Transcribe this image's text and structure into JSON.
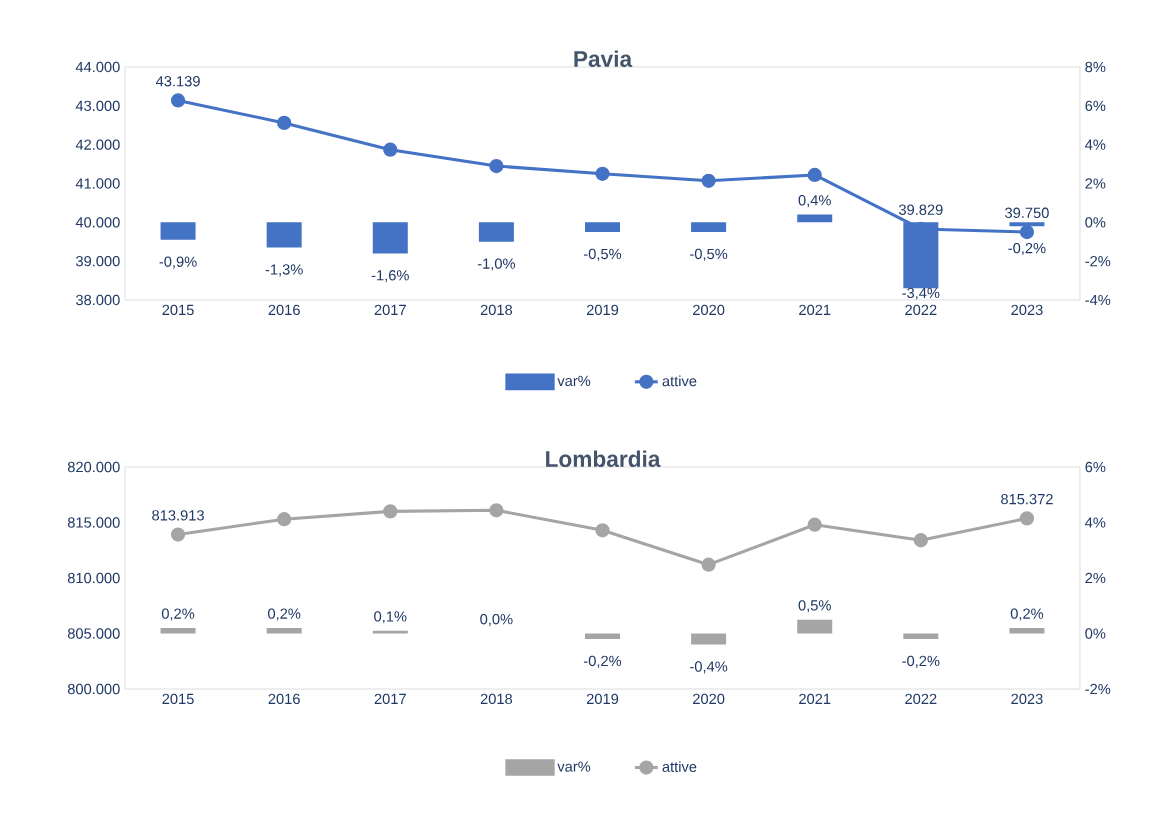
{
  "chart_data": [
    {
      "type": "bar",
      "title": "Pavia",
      "categories": [
        "2015",
        "2016",
        "2017",
        "2018",
        "2019",
        "2020",
        "2021",
        "2022",
        "2023"
      ],
      "series": [
        {
          "name": "var%",
          "axis": "y2",
          "color": "#4472c4",
          "values": [
            -0.9,
            -1.3,
            -1.6,
            -1.0,
            -0.5,
            -0.5,
            0.4,
            -3.4,
            -0.2
          ],
          "value_labels": [
            "-0,9%",
            "-1,3%",
            "-1,6%",
            "-1,0%",
            "-0,5%",
            "-0,5%",
            "0,4%",
            "-3,4%",
            "-0,2%"
          ]
        },
        {
          "name": "attive",
          "type": "line",
          "axis": "y",
          "color": "#4472c4",
          "values": [
            43139,
            42560,
            41870,
            41450,
            41250,
            41070,
            41220,
            39829,
            39750
          ],
          "value_labels": [
            "43.139",
            null,
            null,
            null,
            null,
            null,
            null,
            "39.829",
            "39.750"
          ]
        }
      ],
      "ylim": [
        38000,
        44000
      ],
      "yticks": [
        {
          "value": 38000,
          "label": "38.000"
        },
        {
          "value": 39000,
          "label": "39.000"
        },
        {
          "value": 40000,
          "label": "40.000"
        },
        {
          "value": 41000,
          "label": "41.000"
        },
        {
          "value": 42000,
          "label": "42.000"
        },
        {
          "value": 43000,
          "label": "43.000"
        },
        {
          "value": 44000,
          "label": "44.000"
        }
      ],
      "y2lim": [
        -4,
        8
      ],
      "y2ticks": [
        {
          "value": -4,
          "label": "-4%"
        },
        {
          "value": -2,
          "label": "-2%"
        },
        {
          "value": 0,
          "label": "0%"
        },
        {
          "value": 2,
          "label": "2%"
        },
        {
          "value": 4,
          "label": "4%"
        },
        {
          "value": 6,
          "label": "6%"
        },
        {
          "value": 8,
          "label": "8%"
        }
      ],
      "legend": "bottom",
      "marker": "circle"
    },
    {
      "type": "bar",
      "title": "Lombardia",
      "categories": [
        "2015",
        "2016",
        "2017",
        "2018",
        "2019",
        "2020",
        "2021",
        "2022",
        "2023"
      ],
      "series": [
        {
          "name": "var%",
          "axis": "y2",
          "color": "#a5a5a5",
          "values": [
            0.2,
            0.2,
            0.1,
            0.0,
            -0.2,
            -0.4,
            0.5,
            -0.2,
            0.2
          ],
          "value_labels": [
            "0,2%",
            "0,2%",
            "0,1%",
            "0,0%",
            "-0,2%",
            "-0,4%",
            "0,5%",
            "-0,2%",
            "0,2%"
          ]
        },
        {
          "name": "attive",
          "type": "line",
          "axis": "y",
          "color": "#a5a5a5",
          "values": [
            813913,
            815300,
            816000,
            816100,
            814300,
            811200,
            814800,
            813400,
            815372
          ],
          "value_labels": [
            "813.913",
            null,
            null,
            null,
            null,
            null,
            null,
            null,
            "815.372"
          ]
        }
      ],
      "ylim": [
        800000,
        820000
      ],
      "yticks": [
        {
          "value": 800000,
          "label": "800.000"
        },
        {
          "value": 805000,
          "label": "805.000"
        },
        {
          "value": 810000,
          "label": "810.000"
        },
        {
          "value": 815000,
          "label": "815.000"
        },
        {
          "value": 820000,
          "label": "820.000"
        }
      ],
      "y2lim": [
        -2,
        6
      ],
      "y2ticks": [
        {
          "value": -2,
          "label": "-2%"
        },
        {
          "value": 0,
          "label": "0%"
        },
        {
          "value": 2,
          "label": "2%"
        },
        {
          "value": 4,
          "label": "4%"
        },
        {
          "value": 6,
          "label": "6%"
        }
      ],
      "legend": "bottom",
      "marker": "circle"
    }
  ]
}
